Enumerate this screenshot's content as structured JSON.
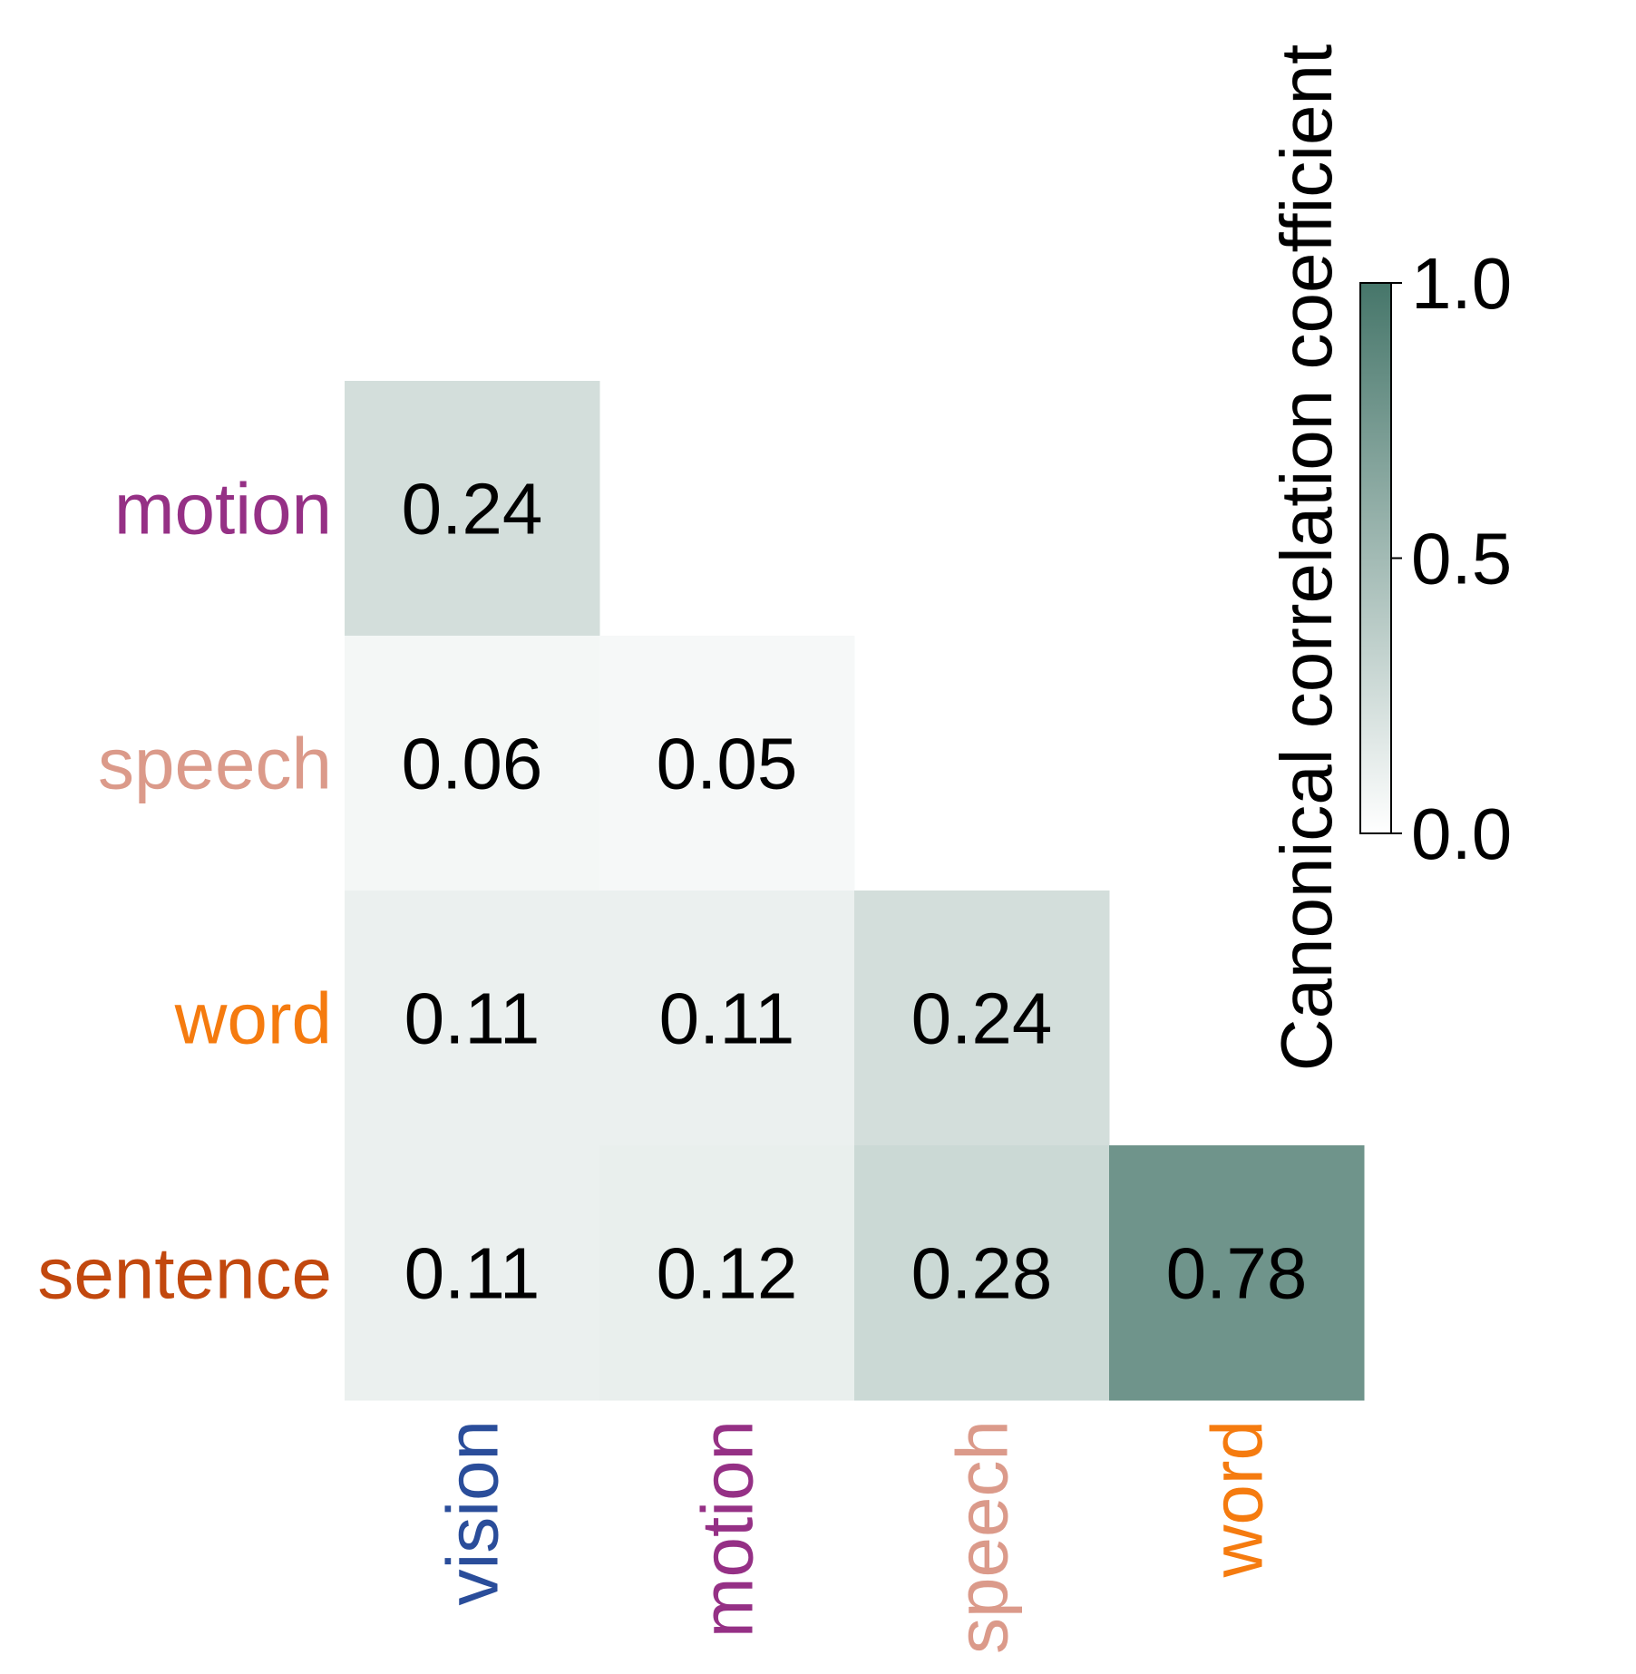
{
  "chart_data": {
    "type": "heatmap",
    "layout": "lower-triangle",
    "rows": [
      {
        "label": "motion",
        "color": "#953085"
      },
      {
        "label": "speech",
        "color": "#db9a8a"
      },
      {
        "label": "word",
        "color": "#f57b0f"
      },
      {
        "label": "sentence",
        "color": "#c2480e"
      }
    ],
    "columns": [
      {
        "label": "vision",
        "color": "#2a4d9a"
      },
      {
        "label": "motion",
        "color": "#953085"
      },
      {
        "label": "speech",
        "color": "#db9a8a"
      },
      {
        "label": "word",
        "color": "#f57b0f"
      }
    ],
    "values": [
      [
        0.24,
        null,
        null,
        null
      ],
      [
        0.06,
        0.05,
        null,
        null
      ],
      [
        0.11,
        0.11,
        0.24,
        null
      ],
      [
        0.11,
        0.12,
        0.28,
        0.78
      ]
    ],
    "colorbar": {
      "label": "Canonical correlation coefficient",
      "range": [
        0.0,
        1.0
      ],
      "ticks": [
        "0.0",
        "0.5",
        "1.0"
      ],
      "color_low": "#ffffff",
      "color_high": "#46766a"
    }
  }
}
